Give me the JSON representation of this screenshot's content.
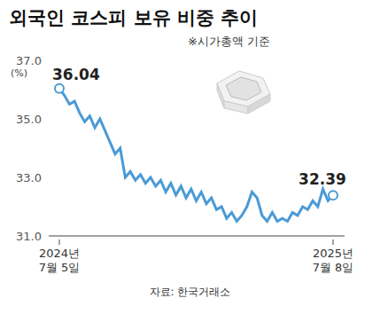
{
  "chart_data": {
    "type": "line",
    "title": "외국인 코스피 보유 비중 추이",
    "subtitle": "※시가총액 기준",
    "y_label": "(%)",
    "source": "자료: 한국거래소",
    "categories": [
      "2024년 7월 5일",
      null,
      null,
      null,
      null,
      null,
      null,
      null,
      null,
      null,
      null,
      null,
      null,
      null,
      null,
      null,
      null,
      null,
      null,
      null,
      null,
      null,
      null,
      null,
      null,
      null,
      null,
      null,
      null,
      null,
      null,
      null,
      null,
      null,
      null,
      null,
      null,
      null,
      null,
      null,
      null,
      null,
      null,
      null,
      null,
      null,
      null,
      null,
      null,
      null,
      null,
      null,
      null,
      null,
      "2025년 7월 8일"
    ],
    "values": [
      36.04,
      35.8,
      35.5,
      35.6,
      35.2,
      34.9,
      35.1,
      34.7,
      35.0,
      34.6,
      34.2,
      33.8,
      34.0,
      33.0,
      33.2,
      32.9,
      33.1,
      32.8,
      33.0,
      32.7,
      32.9,
      32.5,
      32.8,
      32.4,
      32.7,
      32.3,
      32.6,
      32.2,
      32.5,
      32.1,
      32.3,
      31.9,
      32.0,
      31.6,
      31.8,
      31.5,
      31.7,
      32.0,
      32.5,
      32.3,
      31.7,
      31.5,
      31.8,
      31.5,
      31.6,
      31.5,
      31.8,
      31.7,
      32.0,
      31.9,
      32.2,
      32.0,
      32.6,
      32.2,
      32.39
    ],
    "color": "#4a9ad6",
    "ylim": [
      31,
      37
    ],
    "yticks": [
      {
        "value": 37,
        "label": "37.0"
      },
      {
        "value": 35,
        "label": "35.0"
      },
      {
        "value": 33,
        "label": "33.0"
      },
      {
        "value": 31,
        "label": "31.0"
      }
    ],
    "grid": false,
    "marker": "hollow_circle_ends",
    "annotations": [
      {
        "text": "36.04",
        "index": 0
      },
      {
        "text": "32.39",
        "index": 54
      }
    ]
  }
}
